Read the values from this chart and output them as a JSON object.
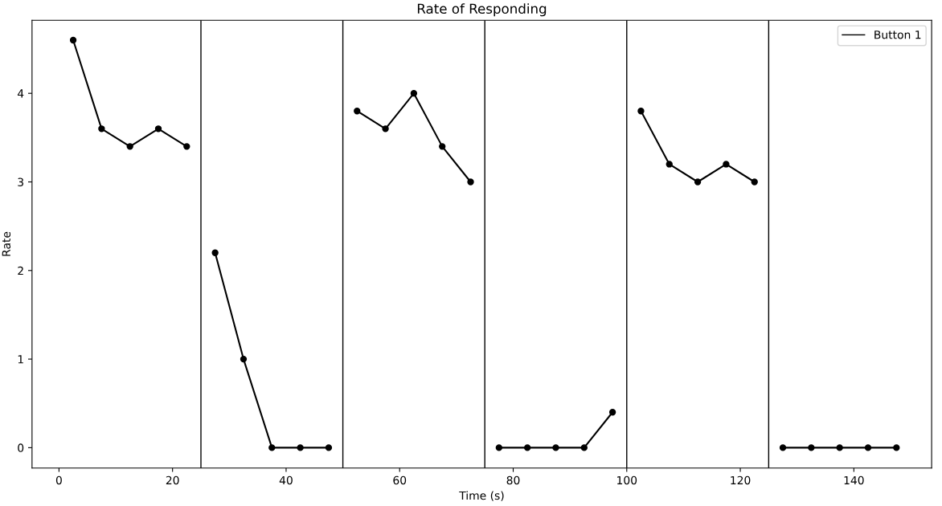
{
  "chart_data": {
    "type": "line",
    "title": "Rate of Responding",
    "xlabel": "Time (s)",
    "ylabel": "Rate",
    "x": [
      2.5,
      7.5,
      12.5,
      17.5,
      22.5,
      25,
      27.5,
      32.5,
      37.5,
      42.5,
      47.5,
      50,
      52.5,
      57.5,
      62.5,
      67.5,
      72.5,
      75,
      77.5,
      82.5,
      87.5,
      92.5,
      97.5,
      100,
      102.5,
      107.5,
      112.5,
      117.5,
      122.5,
      125,
      127.5,
      132.5,
      137.5,
      142.5,
      147.5
    ],
    "series": [
      {
        "name": "Button 1",
        "color": "#000000",
        "values": [
          4.6,
          3.6,
          3.4,
          3.6,
          3.4,
          null,
          2.2,
          1.0,
          0,
          0,
          0,
          null,
          3.8,
          3.6,
          4.0,
          3.4,
          3.0,
          null,
          0,
          0,
          0,
          0,
          0.4,
          null,
          3.8,
          3.2,
          3.0,
          3.2,
          3.0,
          null,
          0,
          0,
          0,
          0,
          0
        ]
      }
    ],
    "xlim": [
      -4.75,
      153.7
    ],
    "xticks": [
      0,
      20,
      40,
      60,
      80,
      100,
      120,
      140
    ],
    "ylim": [
      -0.23,
      4.825
    ],
    "yticks": [
      0,
      1,
      2,
      3,
      4
    ],
    "ref_lines": [
      {
        "axis": "x",
        "value": 25,
        "color": "#000000"
      },
      {
        "axis": "x",
        "value": 50,
        "color": "#000000"
      },
      {
        "axis": "x",
        "value": 75,
        "color": "#000000"
      },
      {
        "axis": "x",
        "value": 100,
        "color": "#000000"
      },
      {
        "axis": "x",
        "value": 125,
        "color": "#000000"
      }
    ],
    "marker": "circle",
    "line_style": "solid",
    "legend": "top right",
    "grid": false
  }
}
